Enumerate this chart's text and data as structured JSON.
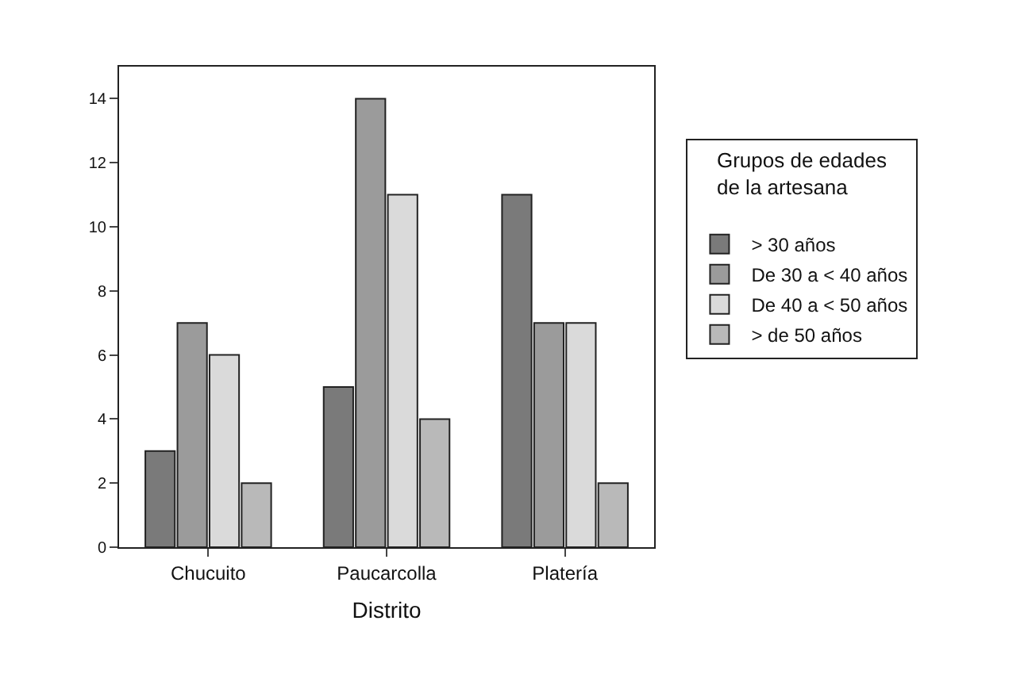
{
  "chart_data": {
    "type": "bar",
    "xlabel": "Distrito",
    "legend_title": "Grupos de edades\nde la artesana",
    "categories": [
      "Chucuito",
      "Paucarcolla",
      "Platería"
    ],
    "series": [
      {
        "name": "> 30 años",
        "color": "#7a7a7a",
        "values": [
          3,
          5,
          11
        ]
      },
      {
        "name": "De 30 a < 40 años",
        "color": "#9b9b9b",
        "values": [
          7,
          14,
          7
        ]
      },
      {
        "name": "De 40 a < 50 años",
        "color": "#dadada",
        "values": [
          6,
          11,
          7
        ]
      },
      {
        "name": "> de 50 años",
        "color": "#b9b9b9",
        "values": [
          2,
          4,
          2
        ]
      }
    ],
    "ylim": [
      0,
      15
    ],
    "yticks": [
      0,
      2,
      4,
      6,
      8,
      10,
      12,
      14
    ],
    "grid": false,
    "legend": "right"
  }
}
